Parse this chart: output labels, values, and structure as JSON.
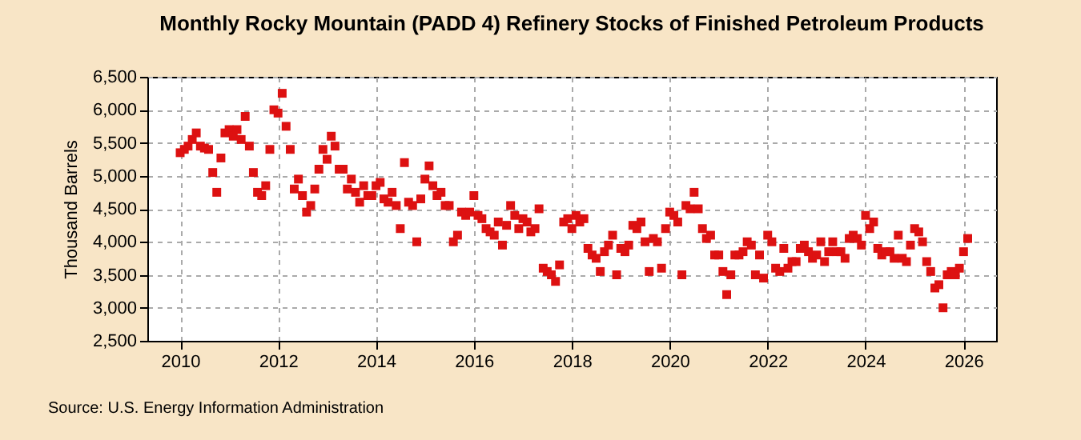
{
  "chart_data": {
    "type": "scatter",
    "title": "Monthly Rocky Mountain (PADD 4) Refinery Stocks of Finished Petroleum Products",
    "ylabel": "Thousand Barrels",
    "annotations": [
      "Source: U.S. Energy Information Administration"
    ],
    "marker": "square",
    "grid": true,
    "legend": false,
    "xlim": [
      "2009-05",
      "2026-09"
    ],
    "xticks": [
      "2010",
      "2012",
      "2014",
      "2016",
      "2018",
      "2020",
      "2022",
      "2024",
      "2026"
    ],
    "ylim": [
      2500,
      6500
    ],
    "yticks": [
      {
        "value": 2500,
        "label": "2,500"
      },
      {
        "value": 3000,
        "label": "3,000"
      },
      {
        "value": 3500,
        "label": "3,500"
      },
      {
        "value": 4000,
        "label": "4,000"
      },
      {
        "value": 4500,
        "label": "4,500"
      },
      {
        "value": 5000,
        "label": "5,000"
      },
      {
        "value": 5500,
        "label": "5,500"
      },
      {
        "value": 6000,
        "label": "6,000"
      },
      {
        "value": 6500,
        "label": "6,500"
      }
    ],
    "x": [
      "2010-01",
      "2010-02",
      "2010-03",
      "2010-04",
      "2010-05",
      "2010-06",
      "2010-07",
      "2010-08",
      "2010-09",
      "2010-10",
      "2010-11",
      "2010-12",
      "2011-01",
      "2011-02",
      "2011-03",
      "2011-04",
      "2011-05",
      "2011-06",
      "2011-07",
      "2011-08",
      "2011-09",
      "2011-10",
      "2011-11",
      "2011-12",
      "2012-01",
      "2012-02",
      "2012-03",
      "2012-04",
      "2012-05",
      "2012-06",
      "2012-07",
      "2012-08",
      "2012-09",
      "2012-10",
      "2012-11",
      "2012-12",
      "2013-01",
      "2013-02",
      "2013-03",
      "2013-04",
      "2013-05",
      "2013-06",
      "2013-07",
      "2013-08",
      "2013-09",
      "2013-10",
      "2013-11",
      "2013-12",
      "2014-01",
      "2014-02",
      "2014-03",
      "2014-04",
      "2014-05",
      "2014-06",
      "2014-07",
      "2014-08",
      "2014-09",
      "2014-10",
      "2014-11",
      "2014-12",
      "2015-01",
      "2015-02",
      "2015-03",
      "2015-04",
      "2015-05",
      "2015-06",
      "2015-07",
      "2015-08",
      "2015-09",
      "2015-10",
      "2015-11",
      "2015-12",
      "2016-01",
      "2016-02",
      "2016-03",
      "2016-04",
      "2016-05",
      "2016-06",
      "2016-07",
      "2016-08",
      "2016-09",
      "2016-10",
      "2016-11",
      "2016-12",
      "2017-01",
      "2017-02",
      "2017-03",
      "2017-04",
      "2017-05",
      "2017-06",
      "2017-07",
      "2017-08",
      "2017-09",
      "2017-10",
      "2017-11",
      "2017-12",
      "2018-01",
      "2018-02",
      "2018-03",
      "2018-04",
      "2018-05",
      "2018-06",
      "2018-07",
      "2018-08",
      "2018-09",
      "2018-10",
      "2018-11",
      "2018-12",
      "2019-01",
      "2019-02",
      "2019-03",
      "2019-04",
      "2019-05",
      "2019-06",
      "2019-07",
      "2019-08",
      "2019-09",
      "2019-10",
      "2019-11",
      "2019-12",
      "2020-01",
      "2020-02",
      "2020-03",
      "2020-04",
      "2020-05",
      "2020-06",
      "2020-07",
      "2020-08",
      "2020-09",
      "2020-10",
      "2020-11",
      "2020-12",
      "2021-01",
      "2021-02",
      "2021-03",
      "2021-04",
      "2021-05",
      "2021-06",
      "2021-07",
      "2021-08",
      "2021-09",
      "2021-10",
      "2021-11",
      "2021-12",
      "2022-01",
      "2022-02",
      "2022-03",
      "2022-04",
      "2022-05",
      "2022-06",
      "2022-07",
      "2022-08",
      "2022-09",
      "2022-10",
      "2022-11",
      "2022-12",
      "2023-01",
      "2023-02",
      "2023-03",
      "2023-04",
      "2023-05",
      "2023-06",
      "2023-07",
      "2023-08",
      "2023-09",
      "2023-10",
      "2023-11",
      "2023-12",
      "2024-01",
      "2024-02",
      "2024-03",
      "2024-04",
      "2024-05",
      "2024-06",
      "2024-07",
      "2024-08",
      "2024-09",
      "2024-10",
      "2024-11",
      "2024-12",
      "2025-01",
      "2025-02",
      "2025-03",
      "2025-04",
      "2025-05",
      "2025-06",
      "2025-07",
      "2025-08",
      "2025-09",
      "2025-10",
      "2025-11",
      "2025-12",
      "2026-01",
      "2026-02"
    ],
    "series": [
      {
        "color": "#dd1111",
        "values": [
          5350,
          5400,
          5450,
          5550,
          5650,
          5450,
          5420,
          5400,
          5050,
          4750,
          5270,
          5650,
          5700,
          5600,
          5700,
          5550,
          5900,
          5450,
          5050,
          4750,
          4700,
          4850,
          5400,
          6000,
          5950,
          6250,
          5750,
          5400,
          4800,
          4950,
          4700,
          4450,
          4550,
          4800,
          5100,
          5400,
          5250,
          5600,
          5450,
          5100,
          5100,
          4800,
          4950,
          4750,
          4600,
          4850,
          4700,
          4700,
          4850,
          4900,
          4650,
          4600,
          4750,
          4550,
          4200,
          5200,
          4600,
          4550,
          4000,
          4650,
          4950,
          5150,
          4850,
          4700,
          4750,
          4550,
          4550,
          4000,
          4100,
          4450,
          4400,
          4450,
          4700,
          4400,
          4350,
          4200,
          4150,
          4100,
          4300,
          3950,
          4250,
          4550,
          4400,
          4200,
          4350,
          4300,
          4150,
          4200,
          4500,
          3600,
          3550,
          3500,
          3400,
          3650,
          4300,
          4350,
          4200,
          4400,
          4300,
          4350,
          3900,
          3800,
          3750,
          3550,
          3850,
          3950,
          4100,
          3500,
          3900,
          3850,
          3950,
          4250,
          4200,
          4300,
          4000,
          3550,
          4050,
          4000,
          3600,
          4200,
          4450,
          4400,
          4300,
          3500,
          4550,
          4500,
          4750,
          4500,
          4200,
          4050,
          4100,
          3800,
          3800,
          3550,
          3200,
          3500,
          3800,
          3800,
          3850,
          4000,
          3950,
          3500,
          3800,
          3450,
          4100,
          4000,
          3600,
          3550,
          3900,
          3600,
          3700,
          3700,
          3900,
          3950,
          3850,
          3750,
          3800,
          4000,
          3700,
          3850,
          4000,
          3850,
          3850,
          3750,
          4050,
          4100,
          4050,
          3950,
          4400,
          4200,
          4300,
          3900,
          3800,
          3850,
          3850,
          3750,
          4100,
          3750,
          3700,
          3950,
          4200,
          4150,
          4000,
          3700,
          3550,
          3300,
          3350,
          3000,
          3500,
          3550,
          3500,
          3600,
          3850,
          4050
        ]
      }
    ]
  }
}
